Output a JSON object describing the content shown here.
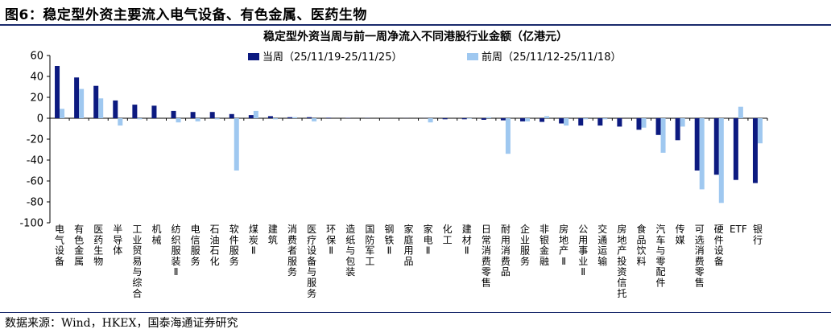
{
  "figure": {
    "title": "图6：稳定型外资主要流入电气设备、有色金属、医药生物",
    "source": "数据来源：Wind，HKEX，国泰海通证券研究"
  },
  "chart_data": {
    "type": "bar",
    "title": "稳定型外资当周与前一周净流入不同港股行业金额（亿港元）",
    "xlabel": "",
    "ylabel": "",
    "ylim": [
      -100,
      60
    ],
    "yticks": [
      60,
      40,
      20,
      0,
      -20,
      -40,
      -60,
      -80,
      -100
    ],
    "grid": false,
    "legend_position": "top-center",
    "categories": [
      "电气设备",
      "有色金属",
      "医药生物",
      "半导体",
      "工业贸易与综合",
      "机械",
      "纺织服装Ⅱ",
      "电信服务",
      "石油石化",
      "软件服务",
      "煤炭Ⅱ",
      "建筑",
      "消费者服务",
      "医疗设备与服务",
      "环保Ⅱ",
      "造纸与包装",
      "国防军工",
      "钢铁Ⅱ",
      "家庭用品",
      "家电Ⅱ",
      "化工",
      "建材Ⅱ",
      "日常消费零售",
      "耐用消费品",
      "企业服务",
      "非银金融",
      "房地产Ⅱ",
      "公用事业Ⅱ",
      "交通运输",
      "房地产投资信托",
      "食品饮料",
      "汽车与零配件",
      "传媒",
      "可选消费零售",
      "硬件设备",
      "ETF",
      "银行"
    ],
    "series": [
      {
        "name": "当周（25/11/19-25/11/25）",
        "color": "#0c1a80",
        "values": [
          50,
          39,
          31,
          17,
          13,
          12,
          7,
          6,
          6,
          4,
          3,
          2,
          1,
          1,
          0.5,
          0.3,
          0.2,
          0.1,
          0.1,
          0.1,
          -1,
          -1,
          -1.5,
          -2,
          -3,
          -3.5,
          -5,
          -7,
          -7,
          -8,
          -11,
          -16,
          -21,
          -50,
          -54,
          -59,
          -62
        ]
      },
      {
        "name": "前周（25/11/12-25/11/18）",
        "color": "#9fc8f0",
        "values": [
          9,
          28,
          19,
          -7,
          -1,
          0,
          -4,
          -3,
          -1,
          -50,
          7,
          -1,
          1,
          -3,
          0,
          0,
          0,
          0,
          0,
          -4,
          0,
          -0.5,
          1,
          -34,
          -3,
          2,
          -7,
          -1,
          -1,
          0,
          -9,
          -33,
          -8,
          -68,
          -81,
          11,
          -24
        ]
      }
    ]
  }
}
